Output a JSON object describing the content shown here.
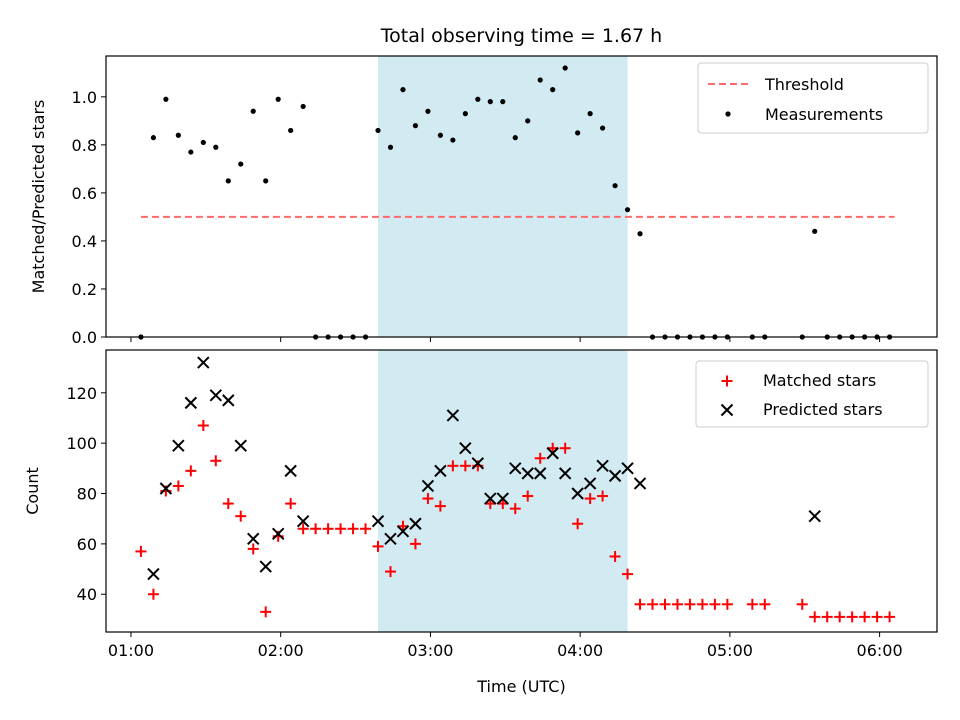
{
  "chart_data": [
    {
      "type": "scatter",
      "title": "Total observing time = 1.67 h",
      "xlabel": "",
      "ylabel": "Matched/Predicted stars",
      "xlim": [
        "00:50",
        "06:23"
      ],
      "ylim": [
        0,
        1.17
      ],
      "x_ticks": [
        "01:00",
        "02:00",
        "03:00",
        "04:00",
        "05:00",
        "06:00"
      ],
      "y_ticks": [
        "0.0",
        "0.2",
        "0.4",
        "0.6",
        "0.8",
        "1.0"
      ],
      "highlight_band": {
        "from": "02:39",
        "to": "04:19",
        "color": "#add8e6"
      },
      "legend": {
        "position": "top-right",
        "entries": [
          "Threshold",
          "Measurements"
        ]
      },
      "threshold": {
        "name": "Threshold",
        "value": 0.5,
        "from": "01:04",
        "to": "06:06",
        "color": "#ff6b6b",
        "style": "dashed"
      },
      "series": [
        {
          "name": "Measurements",
          "color": "#000000",
          "marker": "dot",
          "x": [
            "01:04",
            "01:09",
            "01:14",
            "01:19",
            "01:24",
            "01:29",
            "01:34",
            "01:39",
            "01:44",
            "01:49",
            "01:54",
            "01:59",
            "02:04",
            "02:09",
            "02:14",
            "02:19",
            "02:24",
            "02:29",
            "02:34",
            "02:39",
            "02:44",
            "02:49",
            "02:54",
            "02:59",
            "03:04",
            "03:09",
            "03:14",
            "03:19",
            "03:24",
            "03:29",
            "03:34",
            "03:39",
            "03:44",
            "03:49",
            "03:54",
            "03:59",
            "04:04",
            "04:09",
            "04:14",
            "04:19",
            "04:24",
            "04:29",
            "04:34",
            "04:39",
            "04:44",
            "04:49",
            "04:54",
            "04:59",
            "05:09",
            "05:14",
            "05:29",
            "05:34",
            "05:39",
            "05:44",
            "05:49",
            "05:54",
            "05:59",
            "06:04"
          ],
          "y": [
            0.0,
            0.83,
            0.99,
            0.84,
            0.77,
            0.81,
            0.79,
            0.65,
            0.72,
            0.94,
            0.65,
            0.99,
            0.86,
            0.96,
            0.0,
            0.0,
            0.0,
            0.0,
            0.0,
            0.86,
            0.79,
            1.03,
            0.88,
            0.94,
            0.84,
            0.82,
            0.93,
            0.99,
            0.98,
            0.98,
            0.83,
            0.9,
            1.07,
            1.03,
            1.12,
            0.85,
            0.93,
            0.87,
            0.63,
            0.53,
            0.43,
            0.0,
            0.0,
            0.0,
            0.0,
            0.0,
            0.0,
            0.0,
            0.0,
            0.0,
            0.0,
            0.44,
            0.0,
            0.0,
            0.0,
            0.0,
            0.0,
            0.0
          ]
        }
      ]
    },
    {
      "type": "scatter",
      "title": "",
      "xlabel": "Time (UTC)",
      "ylabel": "Count",
      "xlim": [
        "00:50",
        "06:23"
      ],
      "ylim": [
        25,
        137
      ],
      "x_ticks": [
        "01:00",
        "02:00",
        "03:00",
        "04:00",
        "05:00",
        "06:00"
      ],
      "y_ticks": [
        "40",
        "60",
        "80",
        "100",
        "120"
      ],
      "highlight_band": {
        "from": "02:39",
        "to": "04:19",
        "color": "#add8e6"
      },
      "legend": {
        "position": "top-right",
        "entries": [
          "Matched stars",
          "Predicted stars"
        ]
      },
      "series": [
        {
          "name": "Matched stars",
          "color": "#ff0000",
          "marker": "plus",
          "x": [
            "01:04",
            "01:09",
            "01:14",
            "01:19",
            "01:24",
            "01:29",
            "01:34",
            "01:39",
            "01:44",
            "01:49",
            "01:54",
            "01:59",
            "02:04",
            "02:09",
            "02:14",
            "02:19",
            "02:24",
            "02:29",
            "02:34",
            "02:39",
            "02:44",
            "02:49",
            "02:54",
            "02:59",
            "03:04",
            "03:09",
            "03:14",
            "03:19",
            "03:24",
            "03:29",
            "03:34",
            "03:39",
            "03:44",
            "03:49",
            "03:54",
            "03:59",
            "04:04",
            "04:09",
            "04:14",
            "04:19",
            "04:24",
            "04:29",
            "04:34",
            "04:39",
            "04:44",
            "04:49",
            "04:54",
            "04:59",
            "05:09",
            "05:14",
            "05:29",
            "05:34",
            "05:39",
            "05:44",
            "05:49",
            "05:54",
            "05:59",
            "06:04"
          ],
          "y": [
            57,
            40,
            81,
            83,
            89,
            107,
            93,
            76,
            71,
            58,
            33,
            63,
            76,
            66,
            66,
            66,
            66,
            66,
            66,
            59,
            49,
            67,
            60,
            78,
            75,
            91,
            91,
            91,
            76,
            76,
            74,
            79,
            94,
            98,
            98,
            68,
            78,
            79,
            55,
            48,
            36,
            36,
            36,
            36,
            36,
            36,
            36,
            36,
            36,
            36,
            36,
            31,
            31,
            31,
            31,
            31,
            31,
            31
          ]
        },
        {
          "name": "Predicted stars",
          "color": "#000000",
          "marker": "x",
          "x": [
            "01:09",
            "01:14",
            "01:19",
            "01:24",
            "01:29",
            "01:34",
            "01:39",
            "01:44",
            "01:49",
            "01:54",
            "01:59",
            "02:04",
            "02:09",
            "02:39",
            "02:44",
            "02:49",
            "02:54",
            "02:59",
            "03:04",
            "03:09",
            "03:14",
            "03:19",
            "03:24",
            "03:29",
            "03:34",
            "03:39",
            "03:44",
            "03:49",
            "03:54",
            "03:59",
            "04:04",
            "04:09",
            "04:14",
            "04:19",
            "04:24",
            "05:34"
          ],
          "y": [
            48,
            82,
            99,
            116,
            132,
            119,
            117,
            99,
            62,
            51,
            64,
            89,
            69,
            69,
            62,
            65,
            68,
            83,
            89,
            111,
            98,
            92,
            78,
            78,
            90,
            88,
            88,
            96,
            88,
            80,
            84,
            91,
            87,
            90,
            84,
            71
          ]
        }
      ]
    }
  ]
}
